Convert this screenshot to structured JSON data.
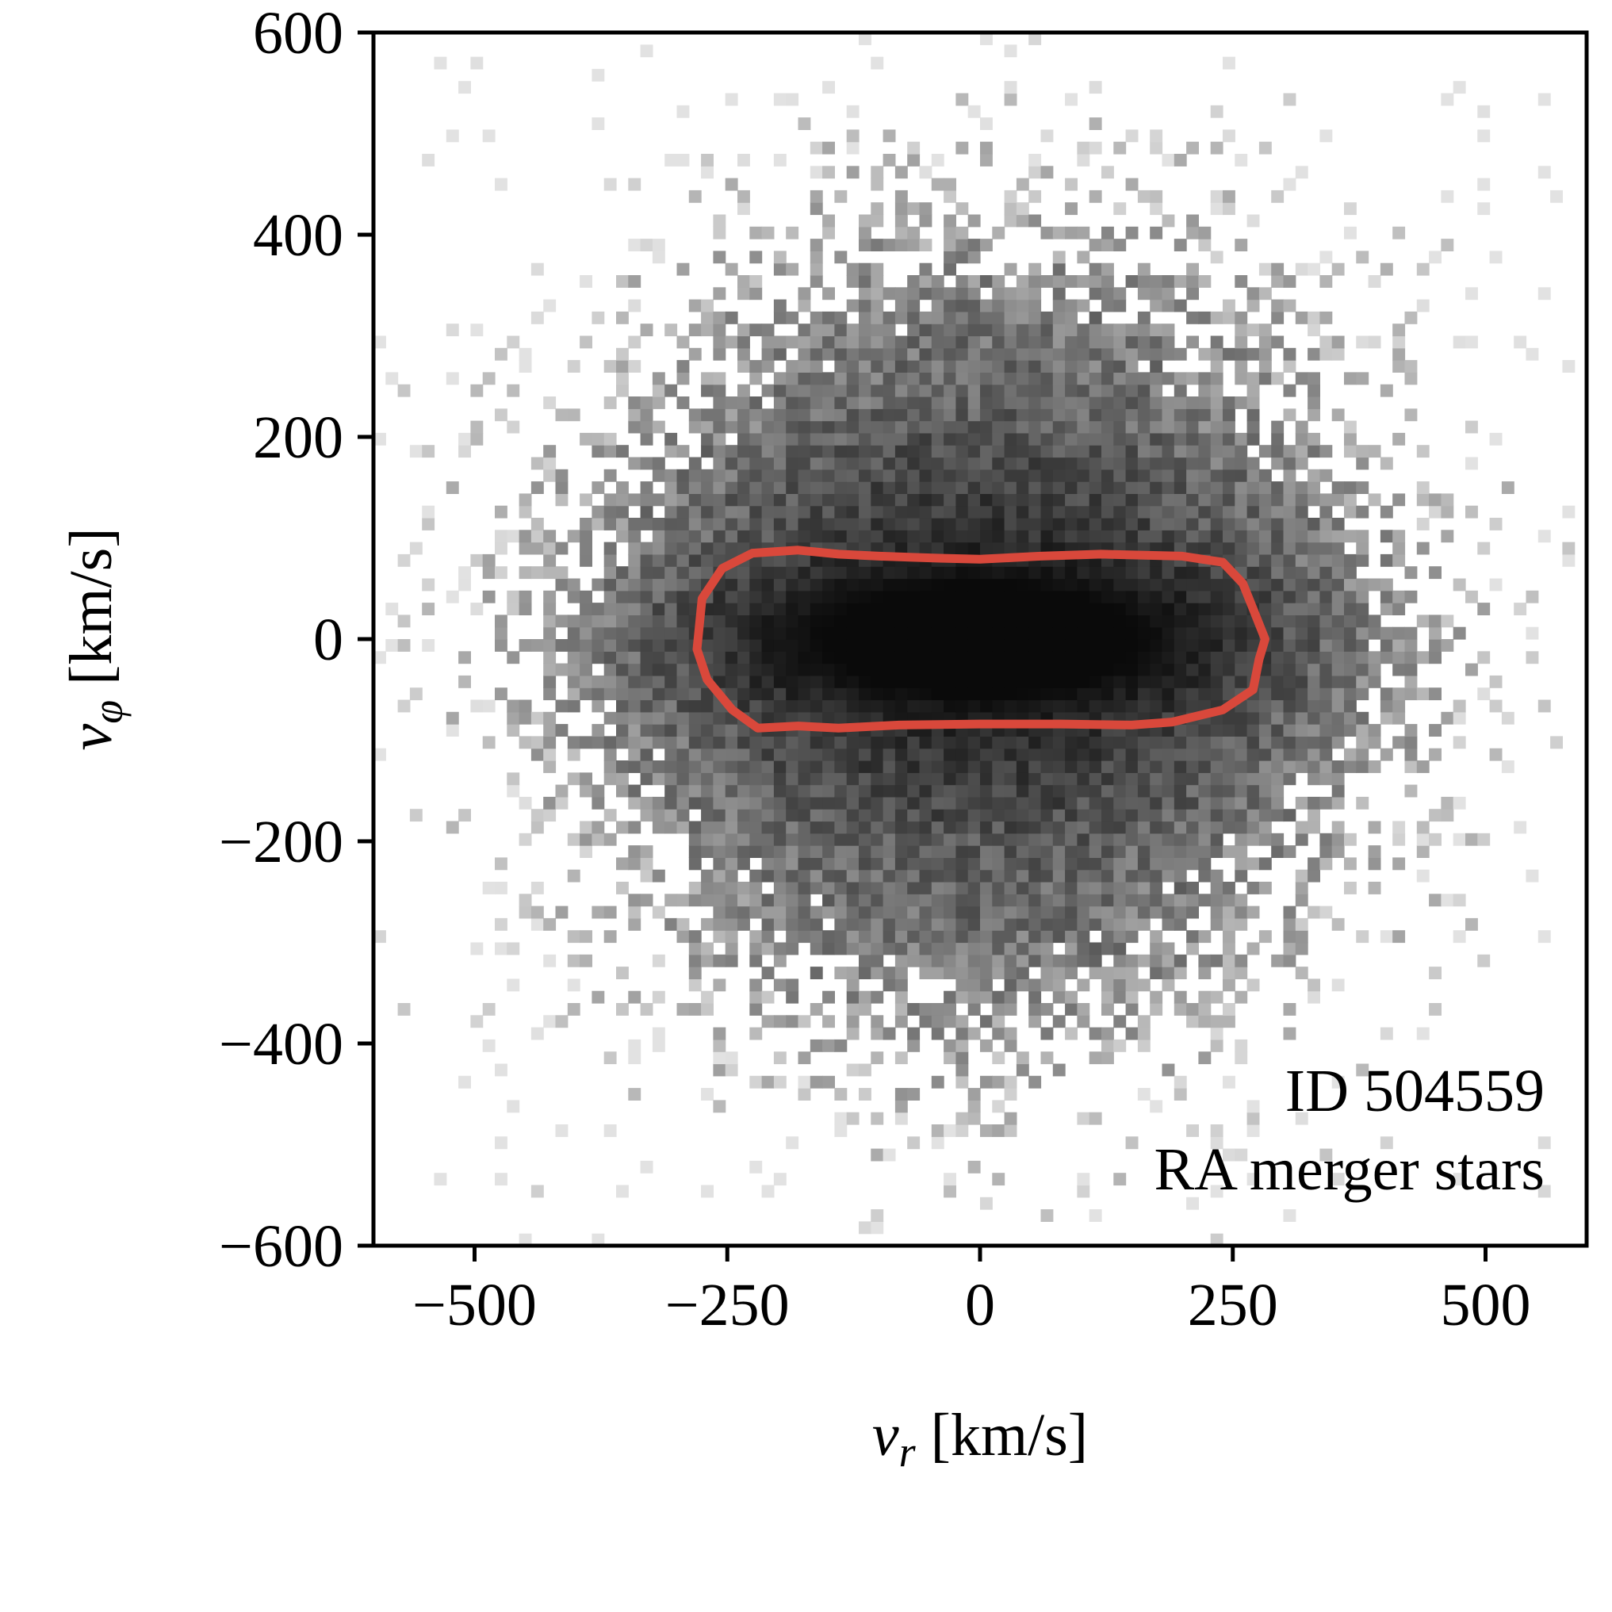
{
  "chart_data": {
    "type": "heatmap",
    "title": "",
    "xlabel": "v_r [km/s]",
    "ylabel": "v_φ [km/s]",
    "xlabel_parts": {
      "symbol": "v",
      "sub": "r",
      "unit": " [km/s]"
    },
    "ylabel_parts": {
      "symbol": "v",
      "sub": "φ",
      "unit": " [km/s]"
    },
    "xlim": [
      -600,
      600
    ],
    "ylim": [
      -600,
      600
    ],
    "xticks": [
      -500,
      -250,
      0,
      250,
      500
    ],
    "yticks": [
      -600,
      -400,
      -200,
      0,
      200,
      400,
      600
    ],
    "xtick_labels": [
      "−500",
      "−250",
      "0",
      "250",
      "500"
    ],
    "ytick_labels": [
      "−600",
      "−400",
      "−200",
      "0",
      "200",
      "400",
      "600"
    ],
    "grid": false,
    "colormap": "greys",
    "bin_size_kms": 12,
    "density_model": {
      "core": {
        "center": [
          0,
          0
        ],
        "sigma_vr": 150,
        "sigma_vphi": 45,
        "weight": 1.0
      },
      "halo": {
        "center": [
          0,
          0
        ],
        "sigma_vr": 210,
        "sigma_vphi": 200,
        "weight": 0.55
      }
    },
    "contour": {
      "color": "#d9483b",
      "points": [
        [
          -280,
          -10
        ],
        [
          -275,
          40
        ],
        [
          -255,
          70
        ],
        [
          -225,
          85
        ],
        [
          -180,
          88
        ],
        [
          -140,
          84
        ],
        [
          -100,
          82
        ],
        [
          -40,
          80
        ],
        [
          0,
          79
        ],
        [
          60,
          82
        ],
        [
          120,
          84
        ],
        [
          200,
          82
        ],
        [
          240,
          76
        ],
        [
          260,
          55
        ],
        [
          270,
          30
        ],
        [
          282,
          0
        ],
        [
          276,
          -20
        ],
        [
          270,
          -50
        ],
        [
          240,
          -70
        ],
        [
          190,
          -82
        ],
        [
          150,
          -85
        ],
        [
          80,
          -84
        ],
        [
          0,
          -84
        ],
        [
          -80,
          -85
        ],
        [
          -140,
          -88
        ],
        [
          -180,
          -86
        ],
        [
          -220,
          -88
        ],
        [
          -245,
          -70
        ],
        [
          -270,
          -40
        ]
      ]
    },
    "annotations": [
      "ID 504559",
      "RA merger stars"
    ]
  }
}
